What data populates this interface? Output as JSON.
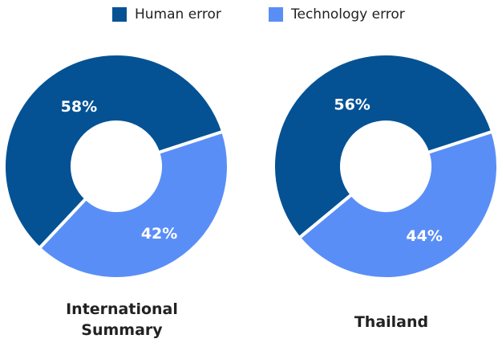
{
  "legend": {
    "labels": [
      "Human error",
      "Technology error"
    ],
    "colors": [
      "#045294",
      "#5a8ef7"
    ]
  },
  "chart_data": [
    {
      "type": "pie",
      "title": "International Summary",
      "values": [
        58,
        42
      ],
      "value_labels": [
        "58%",
        "42%"
      ]
    },
    {
      "type": "pie",
      "title": "Thailand",
      "values": [
        56,
        44
      ],
      "value_labels": [
        "56%",
        "44%"
      ]
    }
  ]
}
